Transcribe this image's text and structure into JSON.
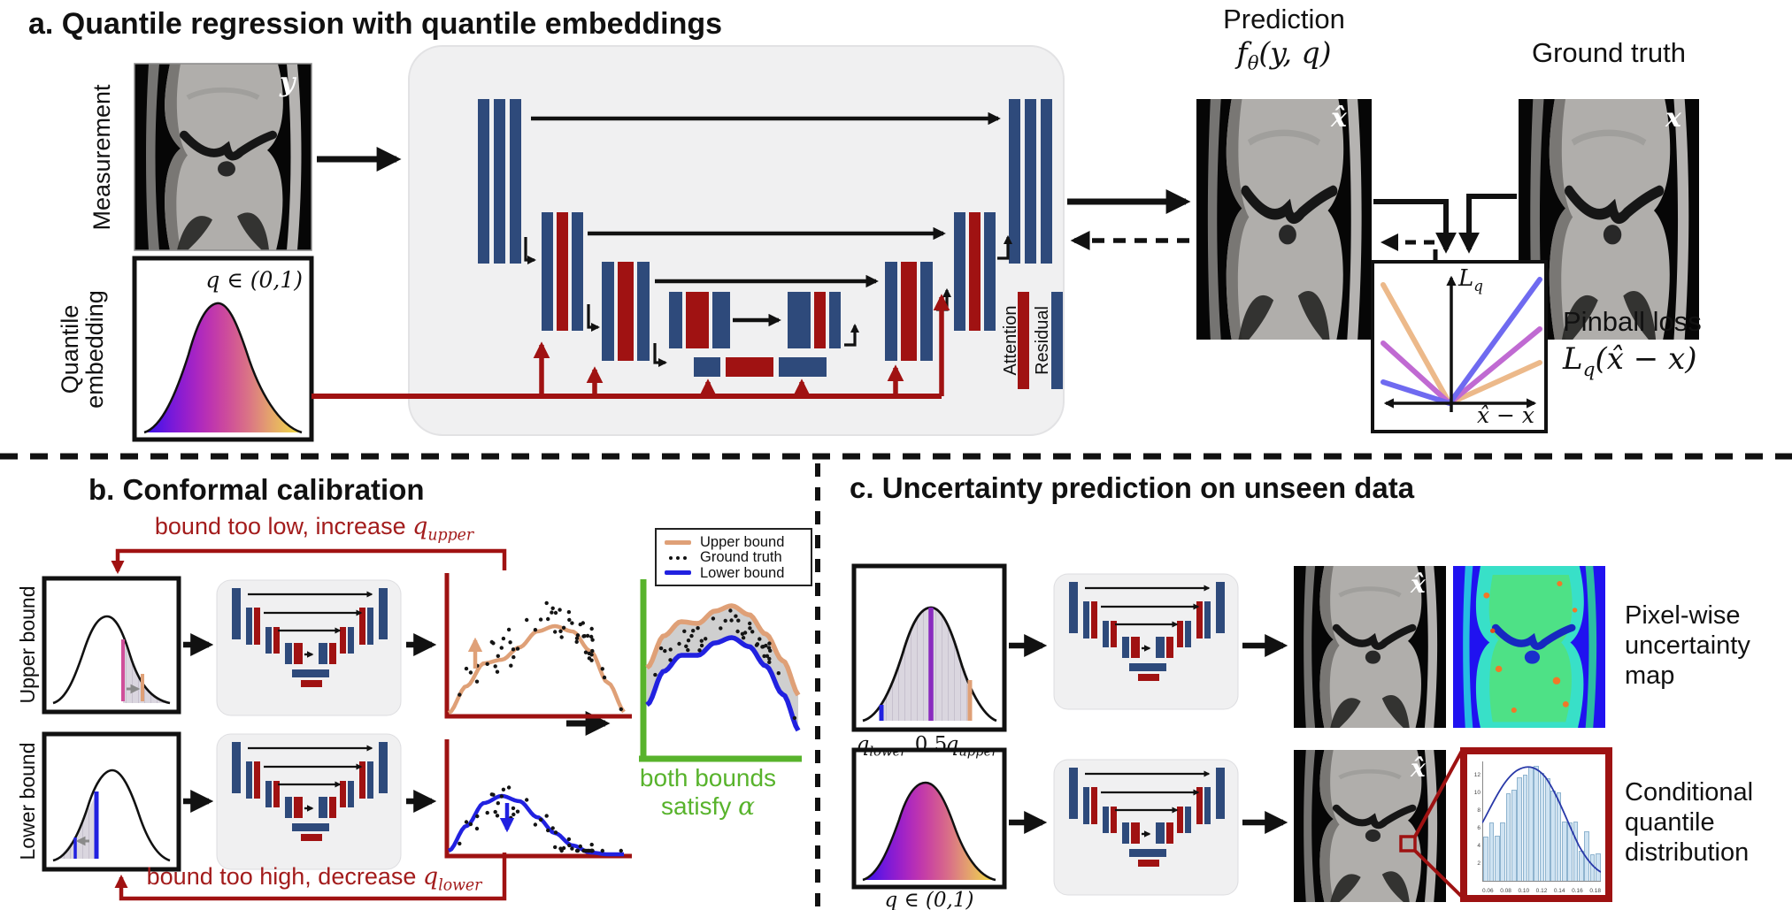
{
  "colors": {
    "navy": "#2e4a7b",
    "dark_red": "#a01212",
    "note_red": "#a31c1c",
    "orange": "#dfa077",
    "bound_blue": "#2121e0",
    "pinball_purple": "#c06ad2",
    "pinball_violet": "#6f6af0",
    "pink_marker": "#cf4f9a",
    "green": "#58b32c",
    "panel_gray": "#f0f0f1"
  },
  "panel_a": {
    "title": "a. Quantile regression with quantile embeddings",
    "measurement_label": "Measurement",
    "measurement_tag": "y",
    "quantile_embedding_label": "Quantile embedding",
    "q_range": "q ∈ (0,1)",
    "attention_label": "Attention",
    "residual_label": "Residual",
    "prediction_title": "Prediction",
    "formula_f": "f",
    "formula_theta": "θ",
    "formula_args": "(y, q)",
    "prediction_tag": "x̂",
    "ground_truth_title": "Ground truth",
    "ground_truth_tag": "x",
    "loss_axis_L": "L",
    "loss_axis_q": "q",
    "loss_axis_x": "x̂ − x",
    "pinball_caption": "Pinball loss",
    "pinball_L": "L",
    "pinball_q": "q",
    "pinball_args": "(x̂ − x)"
  },
  "panel_b": {
    "title": "b. Conformal calibration",
    "note_top_pre": "bound too low, increase ",
    "note_top_q": "q",
    "note_top_sub": "upper",
    "note_bottom_pre": "bound too high, decrease ",
    "note_bottom_q": "q",
    "note_bottom_sub": "lower",
    "upper_bound_label": "Upper bound",
    "lower_bound_label": "Lower bound",
    "legend": [
      {
        "label": "Upper bound"
      },
      {
        "label": "Ground truth"
      },
      {
        "label": "Lower bound"
      }
    ],
    "green_line1": "both bounds",
    "green_line2": "satisfy ",
    "green_alpha": "α"
  },
  "panel_c": {
    "title": "c. Uncertainty prediction on unseen data",
    "q_lower": "q",
    "q_lower_sub": "lower",
    "q_mid": "0.5",
    "q_upper": "q",
    "q_upper_sub": "upper",
    "xhat_tag_1": "x̂",
    "xhat_tag_2": "x̂",
    "q_range": "q ∈ (0,1)",
    "caption_map": "Pixel-wise uncertainty map",
    "caption_dist": "Conditional quantile distribution",
    "histogram": {
      "x_ticks": [
        "0.06",
        "0.08",
        "0.10",
        "0.12",
        "0.14",
        "0.16",
        "0.18"
      ],
      "y_ticks": [
        "2",
        "4",
        "6",
        "8",
        "10",
        "12"
      ],
      "bars": [
        5,
        6.6,
        5.1,
        6.6,
        9.9,
        10.3,
        11.7,
        12,
        12.9,
        13,
        12.2,
        11.6,
        10.2,
        10,
        6.7,
        6.6,
        6.7,
        3.4,
        5.6,
        3,
        3.1
      ]
    }
  }
}
